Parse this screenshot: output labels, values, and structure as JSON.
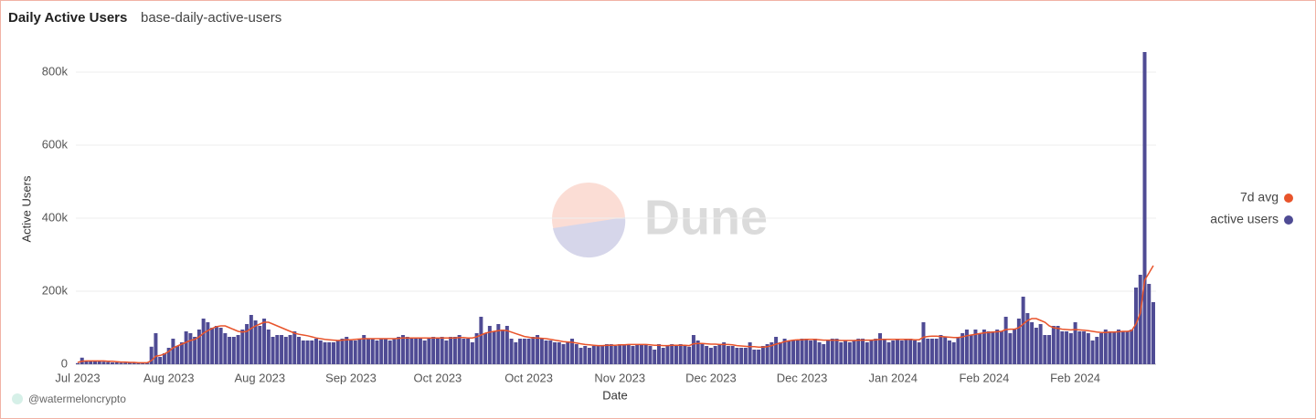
{
  "chart_data": {
    "type": "bar",
    "title": "Daily Active Users",
    "subtitle": "base-daily-active-users",
    "x_label": "Date",
    "y_label": "Active Users",
    "credit": "@watermeloncrypto",
    "watermark": "Dune",
    "legend": "right",
    "grid": true,
    "ylim": [
      0,
      880000
    ],
    "yticks": [
      {
        "value": 0,
        "label": "0"
      },
      {
        "value": 200000,
        "label": "200k"
      },
      {
        "value": 400000,
        "label": "400k"
      },
      {
        "value": 600000,
        "label": "600k"
      },
      {
        "value": 800000,
        "label": "800k"
      }
    ],
    "categories": [
      "Jul 2023",
      null,
      null,
      null,
      null,
      null,
      null,
      null,
      null,
      null,
      null,
      null,
      null,
      null,
      null,
      null,
      null,
      null,
      null,
      null,
      null,
      "Aug 2023",
      null,
      null,
      null,
      null,
      null,
      null,
      null,
      null,
      null,
      null,
      null,
      null,
      null,
      null,
      null,
      null,
      null,
      null,
      null,
      null,
      "Aug 2023",
      null,
      null,
      null,
      null,
      null,
      null,
      null,
      null,
      null,
      null,
      null,
      null,
      null,
      null,
      null,
      null,
      null,
      null,
      null,
      null,
      "Sep 2023",
      null,
      null,
      null,
      null,
      null,
      null,
      null,
      null,
      null,
      null,
      null,
      null,
      null,
      null,
      null,
      null,
      null,
      null,
      null,
      "Oct 2023",
      null,
      null,
      null,
      null,
      null,
      null,
      null,
      null,
      null,
      null,
      null,
      null,
      null,
      null,
      null,
      null,
      null,
      null,
      null,
      null,
      "Oct 2023",
      null,
      null,
      null,
      null,
      null,
      null,
      null,
      null,
      null,
      null,
      null,
      null,
      null,
      null,
      null,
      null,
      null,
      null,
      null,
      null,
      "Nov 2023",
      null,
      null,
      null,
      null,
      null,
      null,
      null,
      null,
      null,
      null,
      null,
      null,
      null,
      null,
      null,
      null,
      null,
      null,
      null,
      null,
      "Dec 2023",
      null,
      null,
      null,
      null,
      null,
      null,
      null,
      null,
      null,
      null,
      null,
      null,
      null,
      null,
      null,
      null,
      null,
      null,
      null,
      null,
      "Dec 2023",
      null,
      null,
      null,
      null,
      null,
      null,
      null,
      null,
      null,
      null,
      null,
      null,
      null,
      null,
      null,
      null,
      null,
      null,
      null,
      null,
      "Jan 2024",
      null,
      null,
      null,
      null,
      null,
      null,
      null,
      null,
      null,
      null,
      null,
      null,
      null,
      null,
      null,
      null,
      null,
      null,
      null,
      null,
      "Feb 2024",
      null,
      null,
      null,
      null,
      null,
      null,
      null,
      null,
      null,
      null,
      null,
      null,
      null,
      null,
      null,
      null,
      null,
      null,
      null,
      null,
      "Feb 2024",
      null,
      null,
      null,
      null,
      null,
      null,
      null,
      null,
      null,
      null,
      null,
      null,
      null,
      null,
      null,
      null,
      null,
      null
    ],
    "series": [
      {
        "name": "7d avg",
        "type": "line",
        "color": "#e8542b",
        "values": [
          5000,
          8000,
          9000,
          9000,
          9000,
          9000,
          9000,
          8000,
          8000,
          7000,
          6000,
          6000,
          5000,
          5000,
          4000,
          4000,
          4000,
          10000,
          22000,
          24000,
          28000,
          35000,
          45000,
          50000,
          55000,
          60000,
          65000,
          68000,
          75000,
          85000,
          92000,
          98000,
          103000,
          105000,
          105000,
          100000,
          95000,
          90000,
          88000,
          90000,
          98000,
          105000,
          110000,
          115000,
          115000,
          110000,
          105000,
          100000,
          95000,
          90000,
          85000,
          82000,
          80000,
          78000,
          75000,
          72000,
          70000,
          68000,
          67000,
          66000,
          65000,
          66000,
          67000,
          67000,
          68000,
          69000,
          70000,
          70000,
          70000,
          70000,
          70000,
          70000,
          70000,
          70000,
          71000,
          72000,
          72000,
          72000,
          72000,
          72000,
          72000,
          72000,
          72000,
          72000,
          72000,
          72000,
          72000,
          72000,
          73000,
          73000,
          72000,
          72000,
          75000,
          80000,
          85000,
          88000,
          90000,
          92000,
          93000,
          92000,
          88000,
          84000,
          80000,
          76000,
          74000,
          72000,
          72000,
          71000,
          70000,
          68000,
          66000,
          64000,
          62000,
          61000,
          60000,
          58000,
          56000,
          54000,
          53000,
          52000,
          51000,
          51000,
          52000,
          52000,
          52000,
          53000,
          53000,
          54000,
          54000,
          54000,
          54000,
          54000,
          53000,
          52000,
          52000,
          51000,
          51000,
          52000,
          52000,
          52000,
          52000,
          51000,
          56000,
          57000,
          57000,
          56000,
          55000,
          55000,
          54000,
          54000,
          54000,
          53000,
          51000,
          50000,
          49000,
          48000,
          48000,
          47000,
          47000,
          48000,
          51000,
          55000,
          58000,
          62000,
          64000,
          66000,
          67000,
          67000,
          68000,
          68000,
          68000,
          67000,
          66000,
          66000,
          66000,
          66000,
          65000,
          65000,
          65000,
          65000,
          66000,
          66000,
          66000,
          66000,
          67000,
          68000,
          68000,
          68000,
          68000,
          68000,
          68000,
          68000,
          68000,
          67000,
          67000,
          74000,
          76000,
          77000,
          77000,
          76000,
          75000,
          74000,
          73000,
          73000,
          75000,
          78000,
          80000,
          82000,
          84000,
          86000,
          87000,
          88000,
          89000,
          90000,
          95000,
          96000,
          96000,
          100000,
          110000,
          120000,
          125000,
          125000,
          120000,
          115000,
          105000,
          100000,
          98000,
          96000,
          95000,
          94000,
          95000,
          94000,
          93000,
          92000,
          90000,
          88000,
          87000,
          87000,
          88000,
          88000,
          89000,
          90000,
          90000,
          92000,
          110000,
          140000,
          230000,
          250000,
          270000
        ]
      },
      {
        "name": "active users",
        "type": "bar",
        "color": "#4f4b94",
        "values": [
          3000,
          18000,
          10000,
          8000,
          8000,
          8000,
          7000,
          6000,
          5000,
          5000,
          4000,
          4000,
          4000,
          4000,
          4000,
          4000,
          4000,
          48000,
          85000,
          20000,
          30000,
          45000,
          70000,
          50000,
          60000,
          90000,
          85000,
          75000,
          95000,
          125000,
          115000,
          100000,
          105000,
          100000,
          85000,
          75000,
          75000,
          80000,
          95000,
          110000,
          135000,
          120000,
          105000,
          125000,
          95000,
          75000,
          80000,
          80000,
          75000,
          80000,
          90000,
          75000,
          65000,
          65000,
          65000,
          70000,
          65000,
          60000,
          60000,
          60000,
          65000,
          70000,
          75000,
          65000,
          65000,
          70000,
          80000,
          70000,
          70000,
          65000,
          70000,
          70000,
          65000,
          70000,
          75000,
          80000,
          75000,
          70000,
          70000,
          70000,
          65000,
          70000,
          75000,
          70000,
          75000,
          65000,
          75000,
          75000,
          80000,
          70000,
          70000,
          60000,
          85000,
          130000,
          85000,
          105000,
          90000,
          110000,
          95000,
          105000,
          70000,
          60000,
          70000,
          70000,
          70000,
          75000,
          80000,
          70000,
          65000,
          65000,
          60000,
          60000,
          55000,
          60000,
          70000,
          55000,
          45000,
          50000,
          45000,
          50000,
          50000,
          50000,
          55000,
          55000,
          50000,
          55000,
          55000,
          55000,
          50000,
          55000,
          55000,
          55000,
          50000,
          40000,
          55000,
          45000,
          50000,
          55000,
          50000,
          55000,
          50000,
          48000,
          80000,
          65000,
          55000,
          50000,
          45000,
          50000,
          55000,
          60000,
          50000,
          50000,
          45000,
          45000,
          45000,
          60000,
          40000,
          40000,
          50000,
          55000,
          60000,
          75000,
          60000,
          70000,
          65000,
          65000,
          65000,
          70000,
          70000,
          65000,
          70000,
          60000,
          55000,
          65000,
          70000,
          70000,
          60000,
          65000,
          60000,
          65000,
          70000,
          70000,
          60000,
          65000,
          70000,
          85000,
          70000,
          60000,
          65000,
          70000,
          65000,
          70000,
          70000,
          65000,
          60000,
          115000,
          70000,
          70000,
          70000,
          80000,
          75000,
          65000,
          60000,
          75000,
          85000,
          95000,
          80000,
          95000,
          85000,
          95000,
          90000,
          90000,
          95000,
          90000,
          130000,
          85000,
          95000,
          125000,
          185000,
          140000,
          115000,
          100000,
          110000,
          80000,
          80000,
          105000,
          105000,
          90000,
          90000,
          85000,
          115000,
          90000,
          90000,
          85000,
          65000,
          75000,
          85000,
          95000,
          90000,
          90000,
          95000,
          90000,
          90000,
          95000,
          210000,
          245000,
          855000,
          220000,
          170000
        ]
      }
    ]
  }
}
